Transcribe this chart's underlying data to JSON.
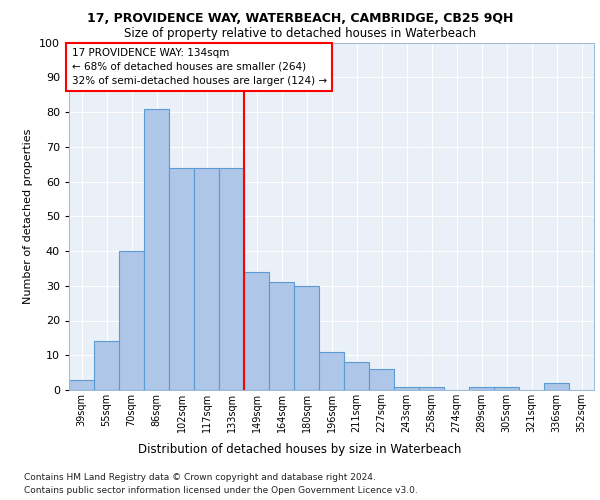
{
  "title1": "17, PROVIDENCE WAY, WATERBEACH, CAMBRIDGE, CB25 9QH",
  "title2": "Size of property relative to detached houses in Waterbeach",
  "xlabel": "Distribution of detached houses by size in Waterbeach",
  "ylabel": "Number of detached properties",
  "footnote1": "Contains HM Land Registry data © Crown copyright and database right 2024.",
  "footnote2": "Contains public sector information licensed under the Open Government Licence v3.0.",
  "categories": [
    "39sqm",
    "55sqm",
    "70sqm",
    "86sqm",
    "102sqm",
    "117sqm",
    "133sqm",
    "149sqm",
    "164sqm",
    "180sqm",
    "196sqm",
    "211sqm",
    "227sqm",
    "243sqm",
    "258sqm",
    "274sqm",
    "289sqm",
    "305sqm",
    "321sqm",
    "336sqm",
    "352sqm"
  ],
  "values": [
    3,
    14,
    40,
    81,
    64,
    64,
    64,
    34,
    31,
    30,
    11,
    8,
    6,
    1,
    1,
    0,
    1,
    1,
    0,
    2,
    0
  ],
  "bar_color": "#aec6e8",
  "bar_edgecolor": "#5b9bd5",
  "bar_linewidth": 0.8,
  "vline_x_index": 6,
  "vline_color": "red",
  "vline_linewidth": 1.5,
  "annotation_text": "17 PROVIDENCE WAY: 134sqm\n← 68% of detached houses are smaller (264)\n32% of semi-detached houses are larger (124) →",
  "ylim": [
    0,
    100
  ],
  "yticks": [
    0,
    10,
    20,
    30,
    40,
    50,
    60,
    70,
    80,
    90,
    100
  ],
  "plot_bg_color": "#eaf0f8",
  "grid_color": "white",
  "figsize": [
    6.0,
    5.0
  ],
  "dpi": 100
}
